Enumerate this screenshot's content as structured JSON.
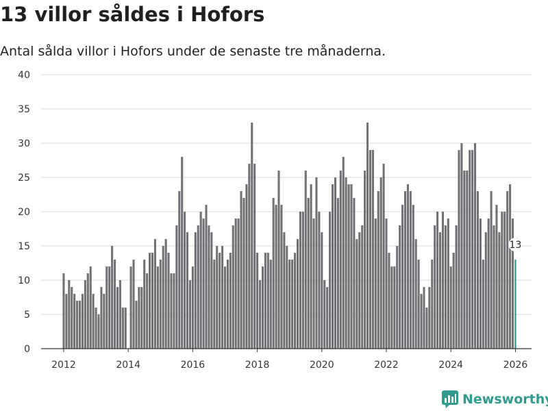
{
  "header": {
    "title": "13 villor såldes i Hofors",
    "subtitle": "Antal sålda villor i Hofors under de senaste tre månaderna."
  },
  "brand": {
    "name": "Newsworthy",
    "logo_icon": "bar-chart-icon"
  },
  "colors": {
    "bar": "#707075",
    "highlight": "#2b9c8e",
    "grid": "#d9d9d9",
    "axis": "#333333",
    "brand": "#2f9a8f"
  },
  "chart_data": {
    "type": "bar",
    "title": "13 villor såldes i Hofors",
    "xlabel": "",
    "ylabel": "",
    "ylim": [
      0,
      40
    ],
    "yticks": [
      0,
      5,
      10,
      15,
      20,
      25,
      30,
      35,
      40
    ],
    "grid": true,
    "x_start": 2012.0,
    "x_step": 0.0833333,
    "xlim": [
      2011.3,
      2026.5
    ],
    "xticks": [
      2012,
      2014,
      2016,
      2018,
      2020,
      2022,
      2024,
      2026
    ],
    "xtick_labels": [
      "2012",
      "2014",
      "2016",
      "2018",
      "2020",
      "2022",
      "2024",
      "2026"
    ],
    "values": [
      11,
      8,
      10,
      9,
      8,
      7,
      7,
      8,
      10,
      11,
      12,
      8,
      6,
      5,
      9,
      8,
      12,
      12,
      15,
      13,
      9,
      10,
      6,
      6,
      0,
      12,
      13,
      7,
      9,
      9,
      13,
      11,
      14,
      14,
      16,
      12,
      13,
      15,
      16,
      14,
      11,
      11,
      18,
      23,
      28,
      20,
      17,
      10,
      12,
      17,
      18,
      20,
      19,
      21,
      18,
      17,
      13,
      15,
      14,
      15,
      12,
      13,
      14,
      18,
      19,
      19,
      23,
      22,
      24,
      27,
      33,
      27,
      14,
      10,
      12,
      14,
      14,
      13,
      22,
      21,
      26,
      21,
      17,
      15,
      13,
      13,
      14,
      16,
      20,
      20,
      26,
      22,
      24,
      19,
      25,
      20,
      17,
      10,
      9,
      20,
      24,
      25,
      22,
      26,
      28,
      25,
      24,
      24,
      22,
      16,
      17,
      18,
      26,
      33,
      29,
      29,
      19,
      23,
      25,
      27,
      19,
      14,
      12,
      12,
      15,
      18,
      21,
      23,
      24,
      23,
      21,
      16,
      13,
      8,
      9,
      6,
      9,
      13,
      18,
      20,
      17,
      20,
      18,
      19,
      12,
      14,
      18,
      29,
      30,
      26,
      26,
      29,
      29,
      30,
      23,
      19,
      13,
      17,
      19,
      23,
      18,
      21,
      17,
      20,
      20,
      23,
      24,
      19,
      13
    ],
    "highlight_last": true,
    "annotations": [
      {
        "label": "13",
        "value": 13,
        "target": "last-bar"
      }
    ]
  }
}
